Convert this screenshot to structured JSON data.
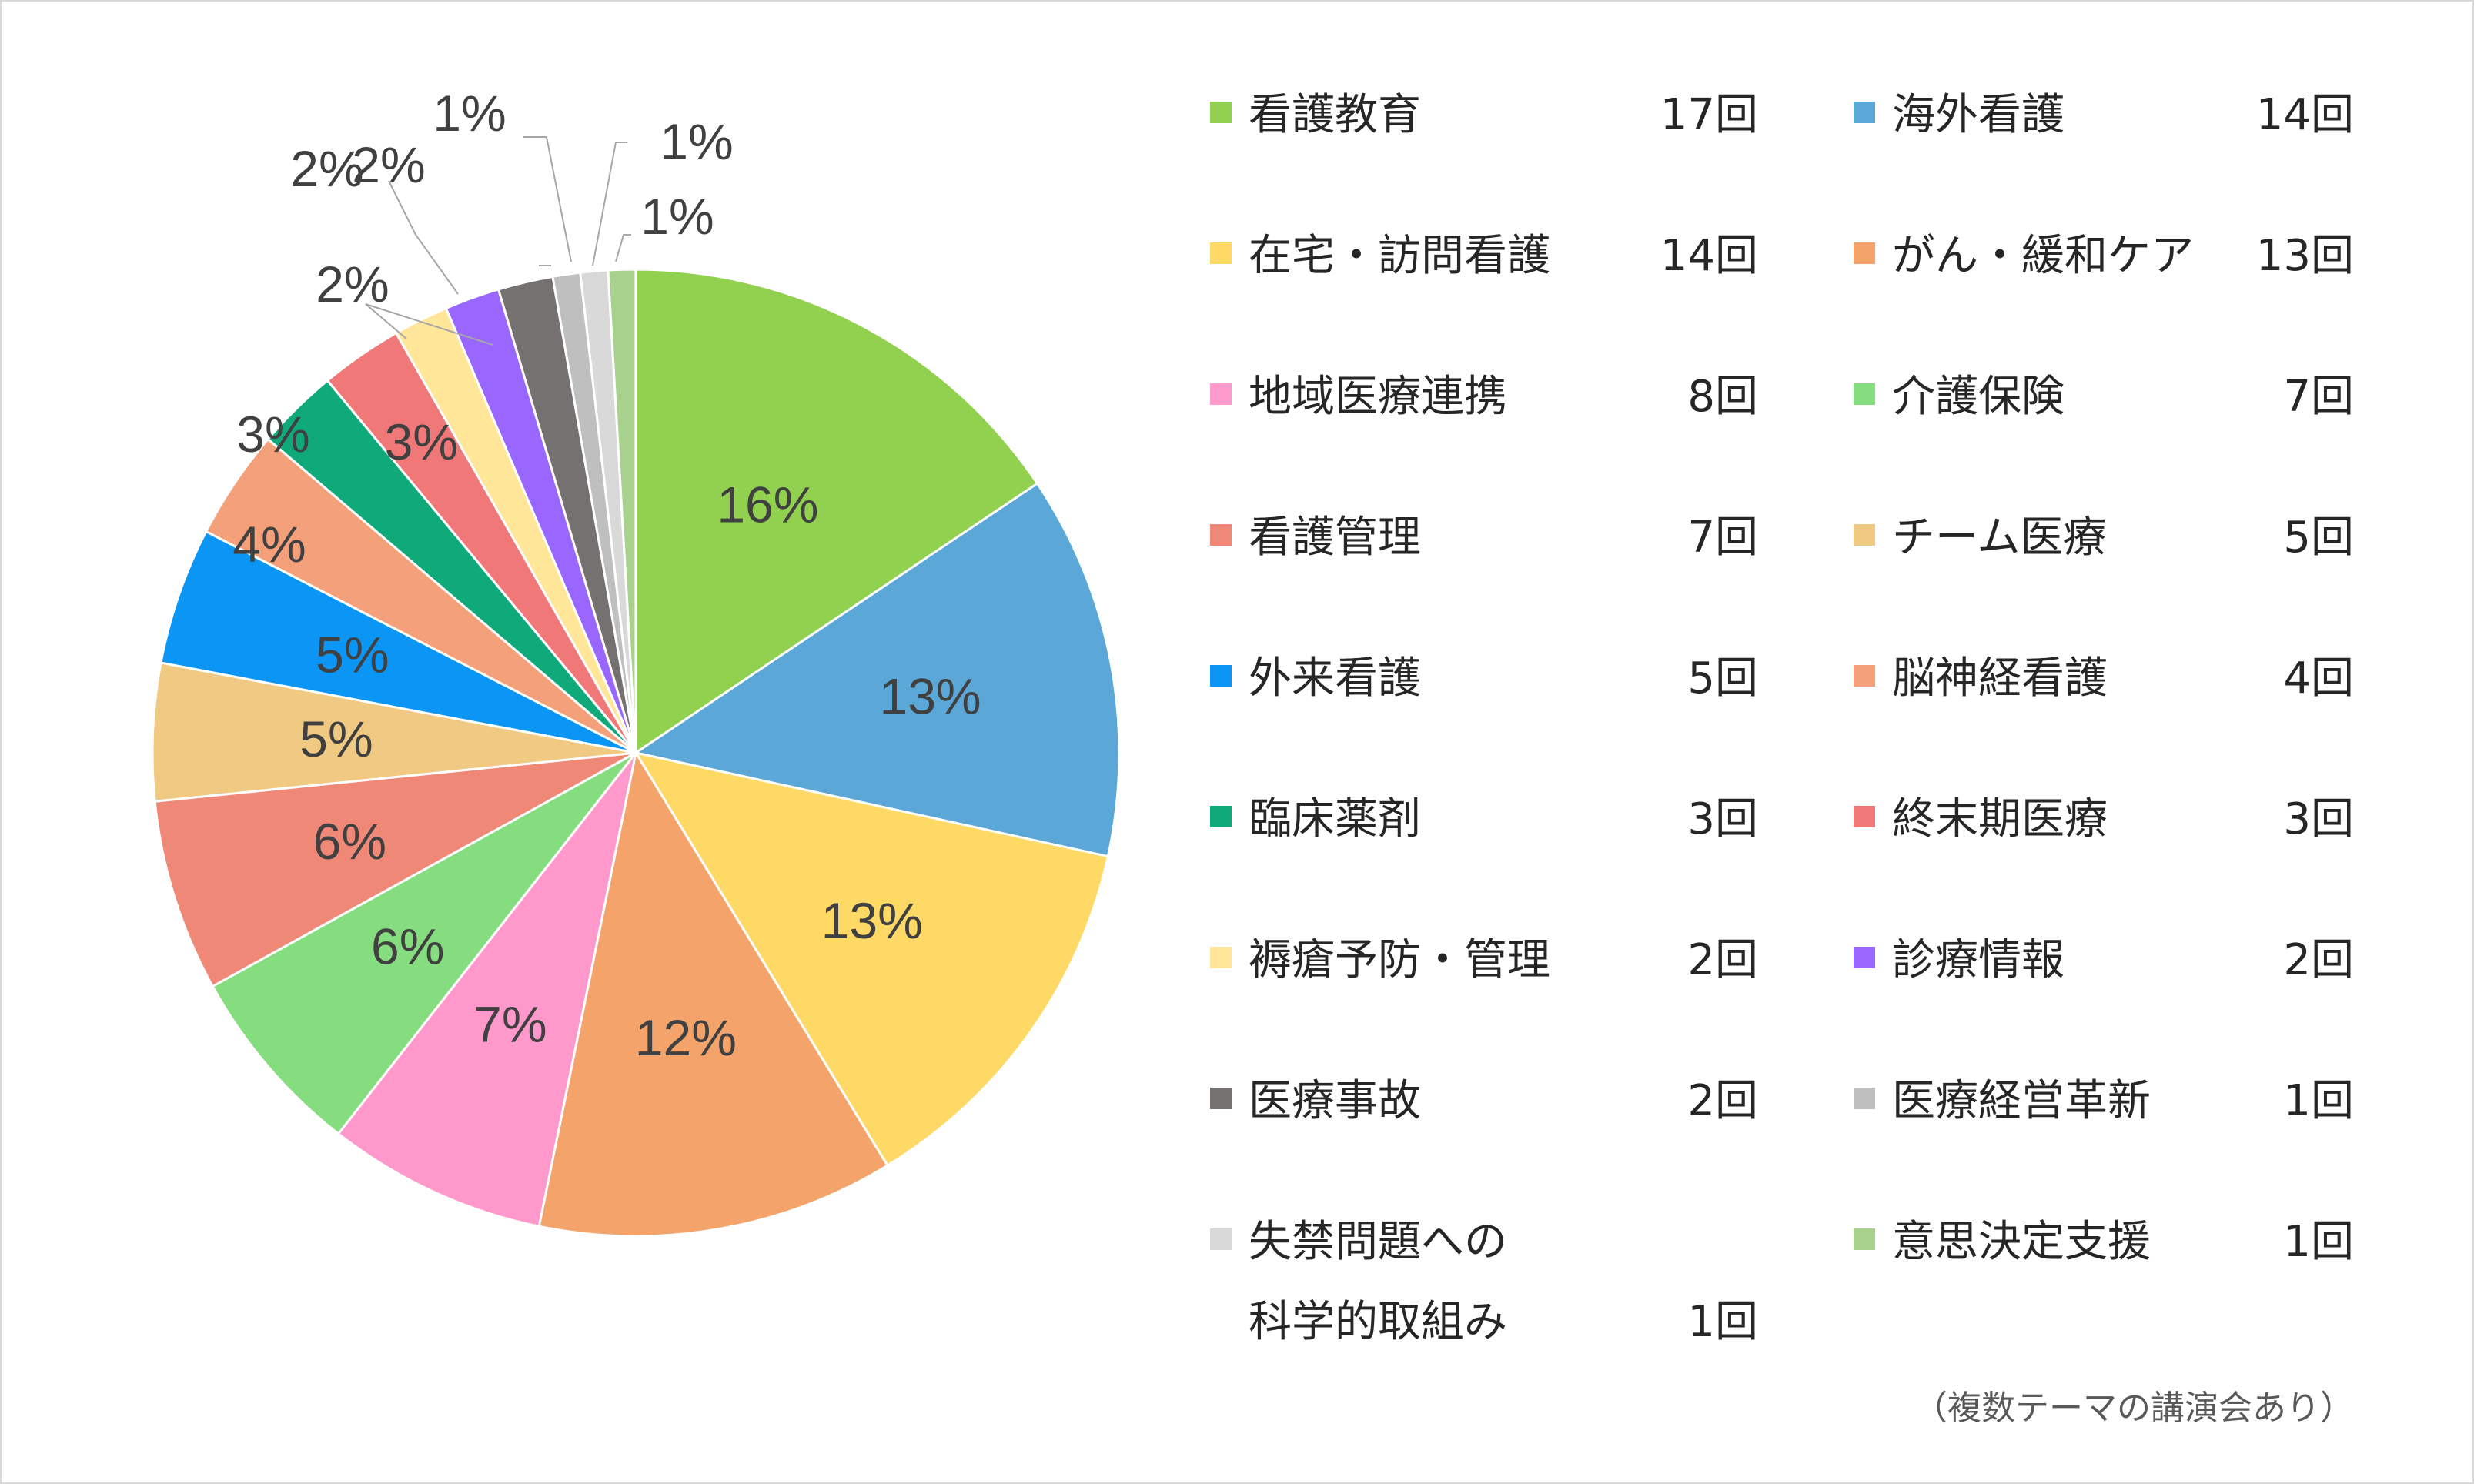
{
  "chart_data": {
    "type": "pie",
    "note": "（複数テーマの講演会あり）",
    "slices": [
      {
        "label": "看護教育",
        "count_text": "17回",
        "value": 17,
        "percent_text": "16%",
        "color": "#92d050",
        "legend_col": 0
      },
      {
        "label": "海外看護",
        "count_text": "14回",
        "value": 14,
        "percent_text": "13%",
        "color": "#5ba7d8",
        "legend_col": 1
      },
      {
        "label": "在宅・訪問看護",
        "count_text": "14回",
        "value": 14,
        "percent_text": "13%",
        "color": "#ffd966",
        "legend_col": 0
      },
      {
        "label": "がん・緩和ケア",
        "count_text": "13回",
        "value": 13,
        "percent_text": "12%",
        "color": "#f4a46a",
        "legend_col": 1
      },
      {
        "label": "地域医療連携",
        "count_text": "8回",
        "value": 8,
        "percent_text": "7%",
        "color": "#ff99cc",
        "legend_col": 0
      },
      {
        "label": "介護保険",
        "count_text": "7回",
        "value": 7,
        "percent_text": "6%",
        "color": "#85dd7f",
        "legend_col": 1
      },
      {
        "label": "看護管理",
        "count_text": "7回",
        "value": 7,
        "percent_text": "6%",
        "color": "#f08878",
        "legend_col": 0
      },
      {
        "label": "チーム医療",
        "count_text": "5回",
        "value": 5,
        "percent_text": "5%",
        "color": "#f0c983",
        "legend_col": 1
      },
      {
        "label": "外来看護",
        "count_text": "5回",
        "value": 5,
        "percent_text": "5%",
        "color": "#0b96f5",
        "legend_col": 0
      },
      {
        "label": "脳神経看護",
        "count_text": "4回",
        "value": 4,
        "percent_text": "4%",
        "color": "#f4a07a",
        "legend_col": 1
      },
      {
        "label": "臨床薬剤",
        "count_text": "3回",
        "value": 3,
        "percent_text": "3%",
        "color": "#10a97a",
        "legend_col": 0
      },
      {
        "label": "終末期医療",
        "count_text": "3回",
        "value": 3,
        "percent_text": "3%",
        "color": "#f07878",
        "legend_col": 1
      },
      {
        "label": "褥瘡予防・管理",
        "count_text": "2回",
        "value": 2,
        "percent_text": "2%",
        "color": "#ffe699",
        "legend_col": 0
      },
      {
        "label": "診療情報",
        "count_text": "2回",
        "value": 2,
        "percent_text": "2%",
        "color": "#9966ff",
        "legend_col": 1
      },
      {
        "label": "医療事故",
        "count_text": "2回",
        "value": 2,
        "percent_text": "2%",
        "color": "#767171",
        "legend_col": 0
      },
      {
        "label": "医療経営革新",
        "count_text": "1回",
        "value": 1,
        "percent_text": "1%",
        "color": "#bfbfbf",
        "legend_col": 1
      },
      {
        "label": [
          "失禁問題への",
          "科学的取組み"
        ],
        "count_text": "1回",
        "value": 1,
        "percent_text": "1%",
        "color": "#d9d9d9",
        "legend_col": 0
      },
      {
        "label": "意思決定支援",
        "count_text": "1回",
        "value": 1,
        "percent_text": "1%",
        "color": "#a9d18e",
        "legend_col": 1
      }
    ]
  }
}
